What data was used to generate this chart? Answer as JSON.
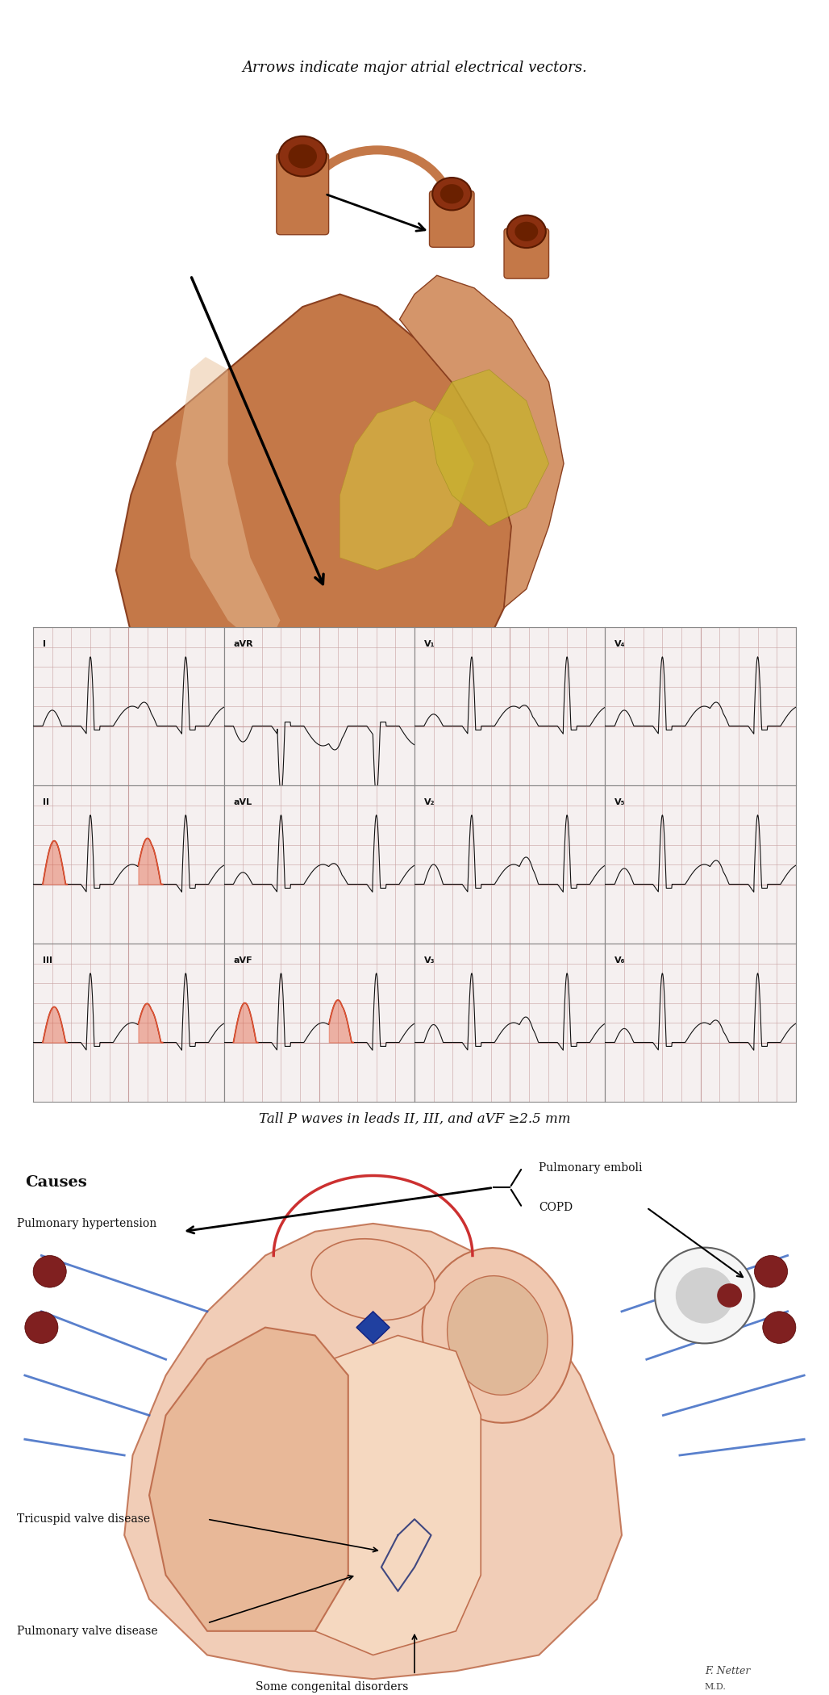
{
  "title_top": "Arrows indicate major atrial electrical vectors.",
  "ecg_caption": "Tall P waves in leads II, III, and aVF ≥2.5 mm",
  "causes_title": "Causes",
  "causes_labels": [
    "Pulmonary hypertension",
    "Pulmonary emboli",
    "COPD",
    "Tricuspid valve disease",
    "Pulmonary valve disease",
    "Some congenital disorders"
  ],
  "ecg_leads": [
    "I",
    "aVR",
    "V₁",
    "V₄",
    "II",
    "aVL",
    "V₂",
    "V₅",
    "III",
    "aVF",
    "V₃",
    "V₆"
  ],
  "bg_color": "#ffffff",
  "grid_color": "#c8a0a0",
  "ecg_line_color": "#111111",
  "highlight_color": "#e05030",
  "heart_bg": "#d4956a",
  "figure_width": 10.28,
  "figure_height": 21.0
}
